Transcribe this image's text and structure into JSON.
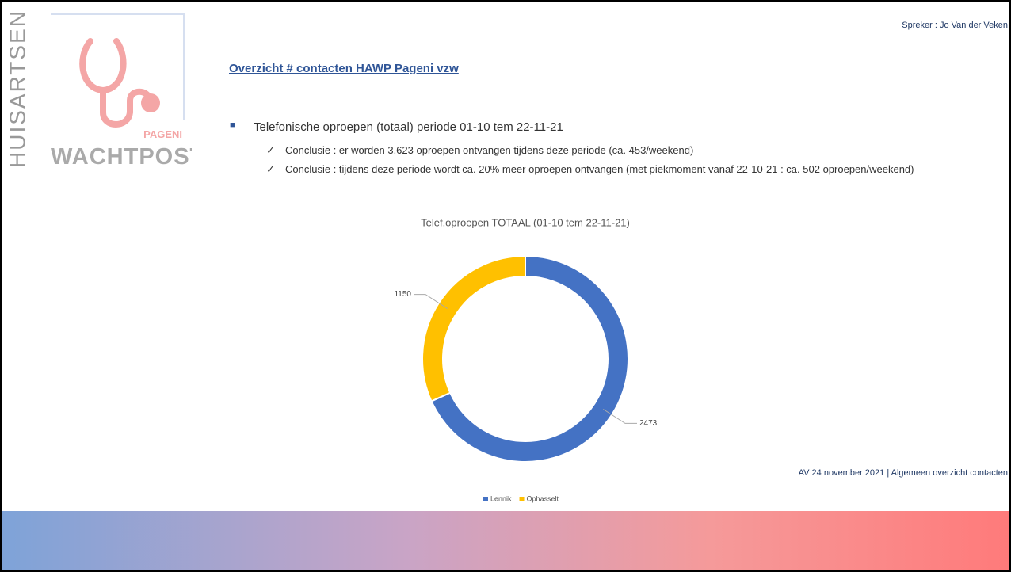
{
  "speaker": "Spreker : Jo Van der Veken",
  "logo": {
    "vertical": "HUISARTSEN",
    "small": "PAGENI",
    "name": "WACHTPOST"
  },
  "heading": "Overzicht # contacten HAWP Pageni vzw",
  "bullet": "Telefonische oproepen (totaal) periode 01-10 tem 22-11-21",
  "subbullets": [
    "Conclusie : er worden 3.623 oproepen ontvangen tijdens deze periode (ca. 453/weekend)",
    "Conclusie : tijdens deze periode wordt ca. 20% meer oproepen ontvangen (met piekmoment vanaf 22-10-21 : ca. 502 oproepen/weekend)"
  ],
  "footer": "AV 24 november 2021 | Algemeen overzicht contacten",
  "chart_data": {
    "type": "donut",
    "title": "Telef.oproepen TOTAAL (01-10 tem 22-11-21)",
    "categories": [
      "Lennik",
      "Ophasselt"
    ],
    "values": [
      2473,
      1150
    ],
    "colors": [
      "#4472c4",
      "#ffc000"
    ],
    "legend": "bottom"
  }
}
